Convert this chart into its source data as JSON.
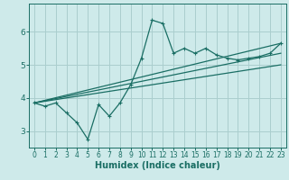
{
  "xlabel": "Humidex (Indice chaleur)",
  "background_color": "#ceeaea",
  "grid_color": "#aacece",
  "line_color": "#1a6e64",
  "x_values": [
    0,
    1,
    2,
    3,
    4,
    5,
    6,
    7,
    8,
    9,
    10,
    11,
    12,
    13,
    14,
    15,
    16,
    17,
    18,
    19,
    20,
    21,
    22,
    23
  ],
  "main_line": [
    3.85,
    3.75,
    3.85,
    3.55,
    3.25,
    2.75,
    3.8,
    3.45,
    3.85,
    4.4,
    5.2,
    6.35,
    6.25,
    5.35,
    5.5,
    5.35,
    5.5,
    5.3,
    5.2,
    5.15,
    5.2,
    5.25,
    5.35,
    5.65
  ],
  "reg_lines": [
    {
      "x0": 0,
      "y0": 3.85,
      "x1": 23,
      "y1": 5.0
    },
    {
      "x0": 0,
      "y0": 3.85,
      "x1": 23,
      "y1": 5.35
    },
    {
      "x0": 0,
      "y0": 3.85,
      "x1": 23,
      "y1": 5.65
    }
  ],
  "xlim": [
    -0.5,
    23.5
  ],
  "ylim": [
    2.5,
    6.85
  ],
  "yticks": [
    3,
    4,
    5,
    6
  ],
  "xticks": [
    0,
    1,
    2,
    3,
    4,
    5,
    6,
    7,
    8,
    9,
    10,
    11,
    12,
    13,
    14,
    15,
    16,
    17,
    18,
    19,
    20,
    21,
    22,
    23
  ],
  "tick_fontsize_x": 5.5,
  "tick_fontsize_y": 6.5,
  "xlabel_fontsize": 7.0,
  "linewidth": 0.9,
  "marker": "+",
  "markersize": 3.5
}
